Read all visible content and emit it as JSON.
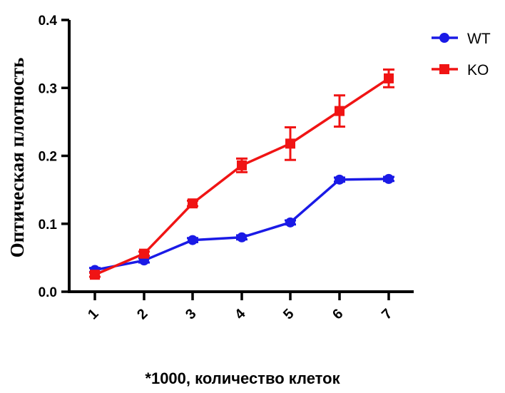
{
  "chart_data": {
    "type": "line",
    "title": "",
    "xlabel": "*1000, количество клеток",
    "ylabel": "Оптическая плотность",
    "categories": [
      "1",
      "2",
      "3",
      "4",
      "5",
      "6",
      "7"
    ],
    "x": [
      1,
      2,
      3,
      4,
      5,
      6,
      7
    ],
    "ylim": [
      0.0,
      0.4
    ],
    "y_ticks": [
      "0.0",
      "0.1",
      "0.2",
      "0.3",
      "0.4"
    ],
    "grid": false,
    "legend_position": "top-right",
    "series": [
      {
        "name": "WT",
        "color": "#1a1ae6",
        "marker": "circle",
        "values": [
          0.032,
          0.046,
          0.076,
          0.08,
          0.102,
          0.165,
          0.166
        ],
        "errors": [
          0.003,
          0.003,
          0.003,
          0.003,
          0.003,
          0.003,
          0.003
        ]
      },
      {
        "name": "KO",
        "color": "#f01414",
        "marker": "square",
        "values": [
          0.025,
          0.056,
          0.13,
          0.186,
          0.218,
          0.266,
          0.314
        ],
        "errors": [
          0.003,
          0.003,
          0.004,
          0.01,
          0.024,
          0.023,
          0.013
        ]
      }
    ]
  }
}
